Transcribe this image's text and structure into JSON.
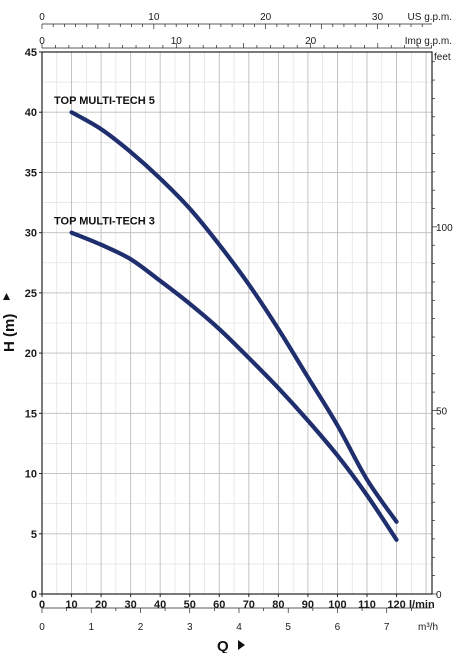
{
  "chart_data": {
    "type": "line",
    "ylabel": "H (m)",
    "xlabel": "Q",
    "x_unit": "l/min",
    "y_unit": "m",
    "xlim": [
      0,
      132
    ],
    "ylim": [
      0,
      45
    ],
    "x_ticks": [
      0,
      10,
      20,
      30,
      40,
      50,
      60,
      70,
      80,
      90,
      100,
      110,
      120
    ],
    "y_ticks": [
      0,
      5,
      10,
      15,
      20,
      25,
      30,
      35,
      40,
      45
    ],
    "grid": true,
    "secondary_axes": {
      "top_us_gpm": {
        "unit": "US g.p.m.",
        "ticks": [
          0,
          10,
          20,
          30
        ]
      },
      "top_imp_gpm": {
        "unit": "Imp g.p.m.",
        "ticks": [
          0,
          10,
          20
        ]
      },
      "bottom_m3h": {
        "unit": "m³/h",
        "ticks": [
          0,
          1,
          2,
          3,
          4,
          5,
          6,
          7
        ]
      },
      "right_feet": {
        "unit": "feet",
        "ticks": [
          0,
          50,
          100
        ]
      }
    },
    "series": [
      {
        "name": "TOP MULTI-TECH 5",
        "color": "#1f2f6e",
        "x": [
          10,
          20,
          30,
          40,
          50,
          60,
          70,
          80,
          90,
          100,
          110,
          120
        ],
        "y": [
          40,
          38.6,
          36.7,
          34.5,
          32,
          29,
          25.7,
          22,
          18,
          14,
          9.5,
          6
        ]
      },
      {
        "name": "TOP MULTI-TECH 3",
        "color": "#1f2f6e",
        "x": [
          10,
          20,
          30,
          40,
          50,
          60,
          70,
          80,
          90,
          100,
          110,
          120
        ],
        "y": [
          30,
          29,
          27.8,
          26,
          24.1,
          22,
          19.6,
          17.1,
          14.4,
          11.5,
          8.2,
          4.5
        ]
      }
    ]
  }
}
